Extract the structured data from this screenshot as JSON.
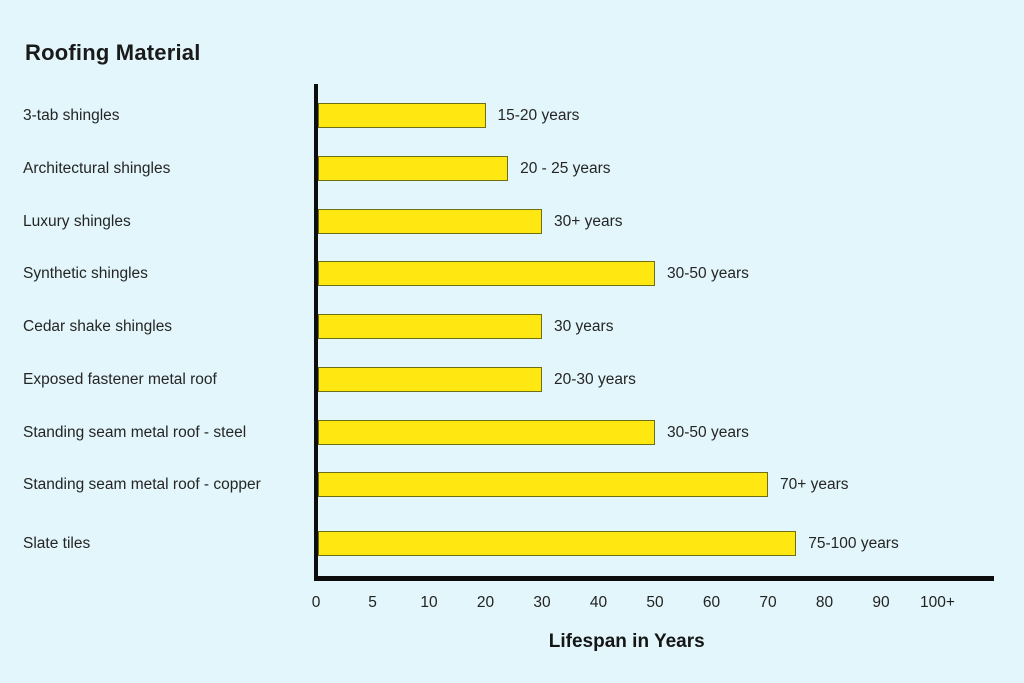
{
  "title": "Roofing Material",
  "chart_data": {
    "type": "bar",
    "orientation": "horizontal",
    "title": "Roofing Material",
    "xlabel": "Lifespan in Years",
    "x_scale": "ordinal-even-spacing",
    "x_tick_labels": [
      "0",
      "5",
      "10",
      "20",
      "30",
      "40",
      "50",
      "60",
      "70",
      "80",
      "90",
      "100+"
    ],
    "x_tick_numeric_values": [
      0,
      5,
      10,
      20,
      30,
      40,
      50,
      60,
      70,
      80,
      90,
      100
    ],
    "grid": false,
    "legend": false,
    "categories": [
      "3-tab shingles",
      "Architectural shingles",
      "Luxury shingles",
      "Synthetic shingles",
      "Cedar shake shingles",
      "Exposed fastener metal roof",
      "Standing seam metal roof - steel",
      "Standing seam metal roof - copper",
      "Slate tiles"
    ],
    "value_labels": [
      "15-20 years",
      "20 - 25 years",
      "30+ years",
      "30-50 years",
      "30 years",
      "20-30 years",
      "30-50 years",
      "70+ years",
      "75-100 years"
    ],
    "bar_end_values": [
      20,
      24,
      30,
      50,
      30,
      30,
      50,
      70,
      75
    ]
  },
  "colors": {
    "background": "#E2F6FB",
    "bar_fill": "#FFE712",
    "bar_border": "#6E6E14",
    "axis": "#0d0d0d",
    "text": "#252525",
    "title_text": "#1a1a1a"
  }
}
